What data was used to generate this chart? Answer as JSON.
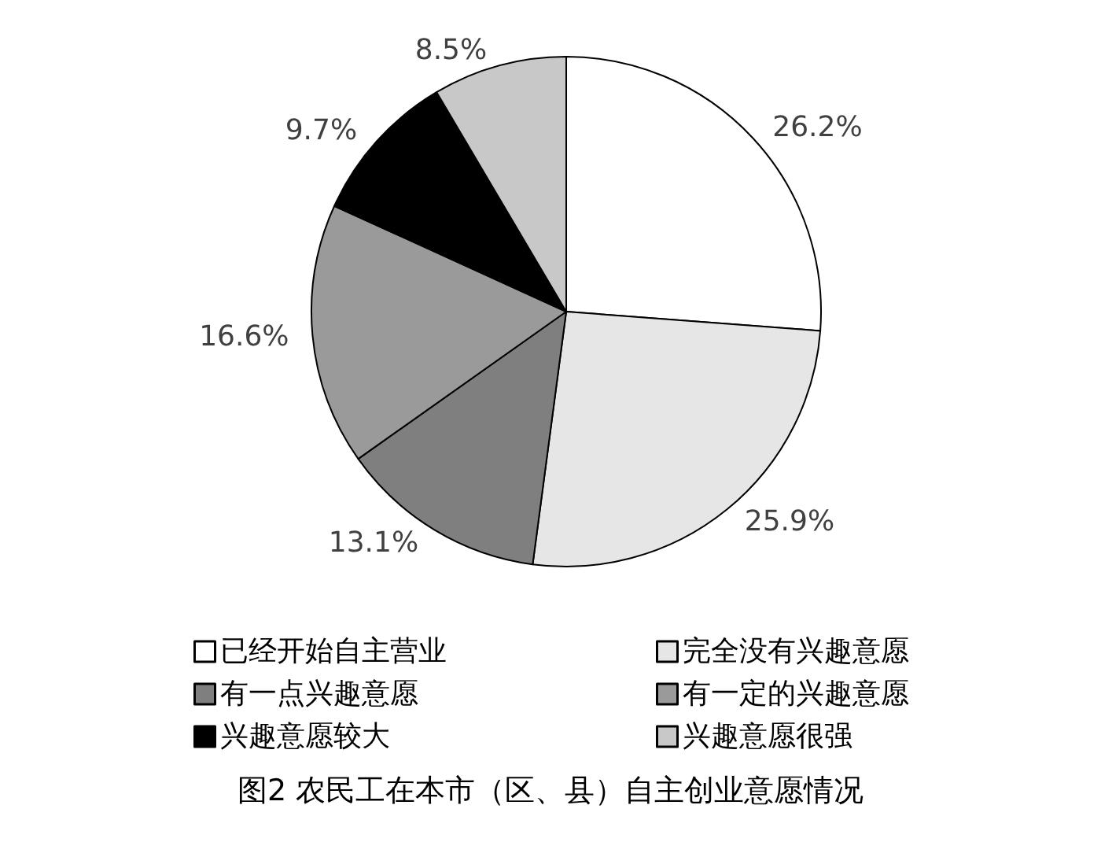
{
  "chart_data": {
    "type": "pie",
    "title": "图2 农民工在本市（区、县）自主创业意愿情况",
    "categories": [
      "已经开始自主营业",
      "完全没有兴趣意愿",
      "有一点兴趣意愿",
      "有一定的兴趣意愿",
      "兴趣意愿较大",
      "兴趣意愿很强"
    ],
    "values": [
      26.2,
      25.9,
      13.1,
      16.6,
      9.7,
      8.5
    ],
    "value_labels": [
      "26.2%",
      "25.9%",
      "13.1%",
      "16.6%",
      "9.7%",
      "8.5%"
    ],
    "colors": [
      "#ffffff",
      "#e6e6e6",
      "#7f7f7f",
      "#9a9a9a",
      "#000000",
      "#c8c8c8"
    ],
    "legend": "bottom"
  }
}
